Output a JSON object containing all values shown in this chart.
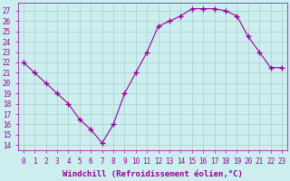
{
  "x": [
    0,
    1,
    2,
    3,
    4,
    5,
    6,
    7,
    8,
    9,
    10,
    11,
    12,
    13,
    14,
    15,
    16,
    17,
    18,
    19,
    20,
    21,
    22,
    23
  ],
  "y": [
    22,
    21,
    20,
    19,
    18,
    16.5,
    15.5,
    14.2,
    16,
    19,
    21,
    23,
    25.5,
    26,
    26.5,
    27.2,
    27.2,
    27.2,
    27.0,
    26.5,
    24.5,
    23,
    21.5,
    21.5
  ],
  "line_color": "#990099",
  "marker": "+",
  "marker_size": 4,
  "bg_color": "#cceeee",
  "grid_color": "#aacccc",
  "xlabel": "Windchill (Refroidissement éolien,°C)",
  "yticks": [
    14,
    15,
    16,
    17,
    18,
    19,
    20,
    21,
    22,
    23,
    24,
    25,
    26,
    27
  ],
  "xticks": [
    0,
    1,
    2,
    3,
    4,
    5,
    6,
    7,
    8,
    9,
    10,
    11,
    12,
    13,
    14,
    15,
    16,
    17,
    18,
    19,
    20,
    21,
    22,
    23
  ],
  "tick_label_size": 5.5,
  "xlabel_size": 6.5,
  "line_width": 0.8
}
